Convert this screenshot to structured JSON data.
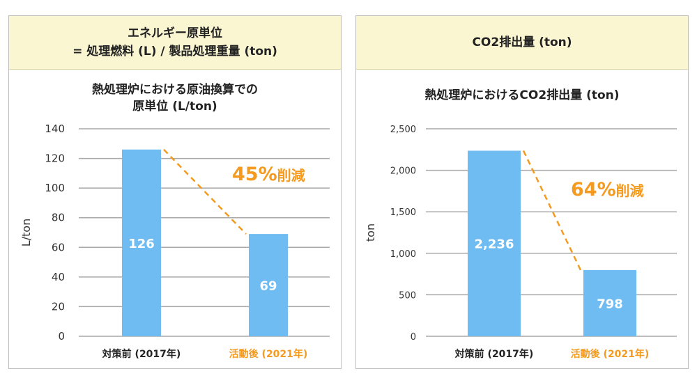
{
  "panels": [
    {
      "header": [
        "エネルギー原単位",
        "= 処理燃料 (L) / 製品処理重量 (ton)"
      ],
      "chart_title": [
        "熱処理炉における原油換算での",
        "原単位 (L/ton)"
      ]
    },
    {
      "header": [
        "CO2排出量 (ton)"
      ],
      "chart_title": [
        "熱処理炉におけるCO2排出量 (ton)"
      ]
    }
  ],
  "colors": {
    "bar": "#6fbcf3",
    "accent": "#f39a1f",
    "grid": "#a8a8a8",
    "header_bg": "#fbf6d2"
  },
  "chart_data": [
    {
      "type": "bar",
      "categories": [
        "対策前 (2017年)",
        "活動後 (2021年)"
      ],
      "category_colors": [
        "#222222",
        "#f39a1f"
      ],
      "values": [
        126,
        69
      ],
      "value_labels": [
        "126",
        "69"
      ],
      "ylabel": "L/ton",
      "ylim": [
        0,
        140
      ],
      "yticks": [
        0,
        20,
        40,
        60,
        80,
        100,
        120,
        140
      ],
      "ytick_labels": [
        "0",
        "20",
        "40",
        "60",
        "80",
        "100",
        "120",
        "140"
      ],
      "grid": true,
      "annotation": {
        "number": "45%",
        "suffix": "削減"
      }
    },
    {
      "type": "bar",
      "categories": [
        "対策前 (2017年)",
        "活動後 (2021年)"
      ],
      "category_colors": [
        "#222222",
        "#f39a1f"
      ],
      "values": [
        2236,
        798
      ],
      "value_labels": [
        "2,236",
        "798"
      ],
      "ylabel": "ton",
      "ylim": [
        0,
        2500
      ],
      "yticks": [
        0,
        500,
        1000,
        1500,
        2000,
        2500
      ],
      "ytick_labels": [
        "0",
        "500",
        "1,000",
        "1,500",
        "2,000",
        "2,500"
      ],
      "grid": true,
      "annotation": {
        "number": "64%",
        "suffix": "削減"
      }
    }
  ]
}
